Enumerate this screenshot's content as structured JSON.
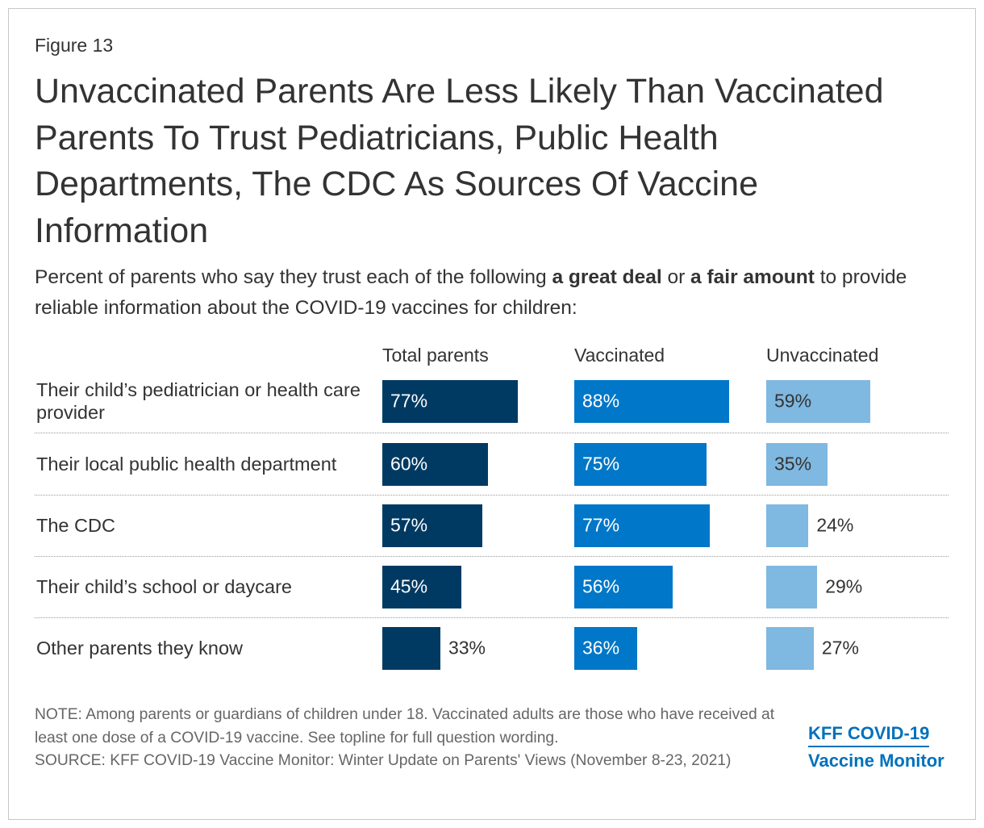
{
  "chart_data": {
    "type": "bar",
    "label": "Figure 13",
    "title": "Unvaccinated Parents Are Less Likely Than Vaccinated Parents To Trust Pediatricians, Public Health Departments, The CDC As Sources Of Vaccine Information",
    "subtitle": [
      "Percent of parents who say they trust each of the following ",
      "a great deal",
      " or ",
      "a fair amount",
      " to provide reliable information about the COVID-19 vaccines for children:"
    ],
    "categories": [
      "Their child’s pediatrician or health care provider",
      "Their local public health department",
      "The CDC",
      "Their child’s school or daycare",
      "Other parents they know"
    ],
    "series": [
      {
        "name": "Total parents",
        "color": "#003a63",
        "values": [
          77,
          60,
          57,
          45,
          33
        ],
        "value_labels": [
          "77%",
          "60%",
          "57%",
          "45%",
          "33%"
        ]
      },
      {
        "name": "Vaccinated",
        "color": "#0077c8",
        "values": [
          88,
          75,
          77,
          56,
          36
        ],
        "value_labels": [
          "88%",
          "75%",
          "77%",
          "56%",
          "36%"
        ]
      },
      {
        "name": "Unvaccinated",
        "color": "#7fb8e0",
        "values": [
          59,
          35,
          24,
          29,
          27
        ],
        "value_labels": [
          "59%",
          "35%",
          "24%",
          "29%",
          "27%"
        ]
      }
    ],
    "note": "NOTE: Among parents or guardians of children under 18. Vaccinated adults are those who have received at least one dose of a COVID-19 vaccine. See topline for full question wording.",
    "source": "SOURCE: KFF COVID-19 Vaccine Monitor: Winter Update on Parents' Views (November 8-23, 2021)",
    "logo": [
      "KFF COVID-19",
      "Vaccine Monitor"
    ]
  }
}
